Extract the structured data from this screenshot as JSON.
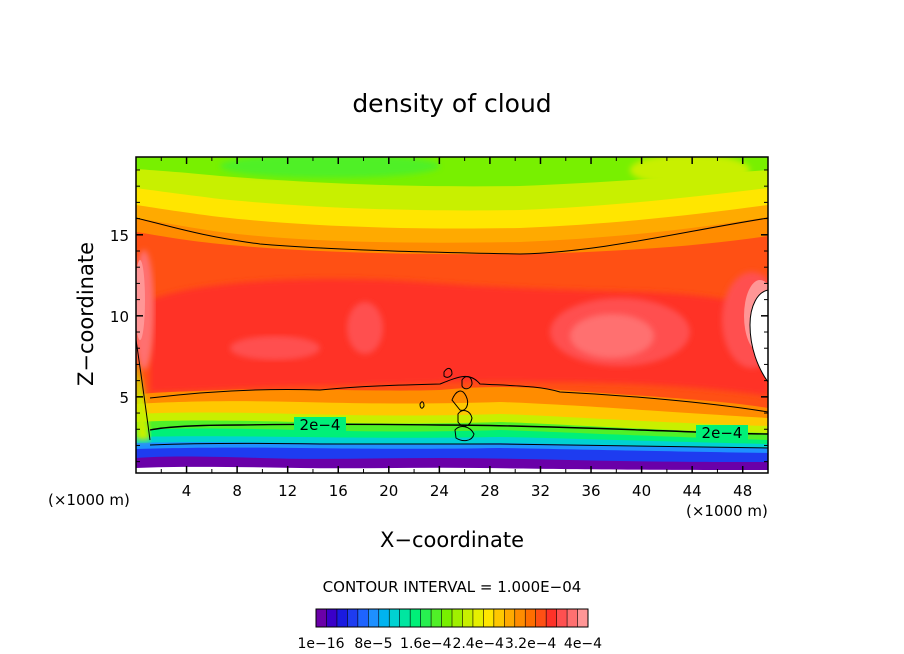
{
  "chart_data": {
    "type": "heatmap",
    "title": "density of cloud",
    "xlabel": "X−coordinate",
    "ylabel": "Z−coordinate",
    "x_unit": "(×1000 m)",
    "x_unit_right": "(×1000 m)",
    "xlim": [
      0,
      50
    ],
    "ylim": [
      0.3,
      19.8
    ],
    "x_ticks": [
      4,
      8,
      12,
      16,
      20,
      24,
      28,
      32,
      36,
      40,
      44,
      48
    ],
    "y_ticks": [
      5,
      10,
      15
    ],
    "contour_interval_text": "CONTOUR INTERVAL = 1.000E−04",
    "contour_labels": [
      {
        "text": "2e−4",
        "x": 15.5,
        "z": 2.9
      },
      {
        "text": "2e−4",
        "x": 45.5,
        "z": 2.4
      }
    ],
    "colorbar": {
      "colors": [
        "#6a00a8",
        "#3a00c8",
        "#1a1ae0",
        "#1e3cf0",
        "#1e64ff",
        "#1e90ff",
        "#00b4f0",
        "#00d2d2",
        "#00e6a0",
        "#00f078",
        "#28f050",
        "#50f028",
        "#78f000",
        "#a0f000",
        "#c8f000",
        "#e6f000",
        "#ffe600",
        "#ffc800",
        "#ffaa00",
        "#ff8c00",
        "#ff6e00",
        "#ff5014",
        "#ff3228",
        "#ff5050",
        "#ff7070",
        "#ff9696"
      ],
      "labels": [
        "1e−16",
        "8e−5",
        "1.6e−4",
        "2.4e−4",
        "3.2e−4",
        "4e−4"
      ]
    }
  }
}
